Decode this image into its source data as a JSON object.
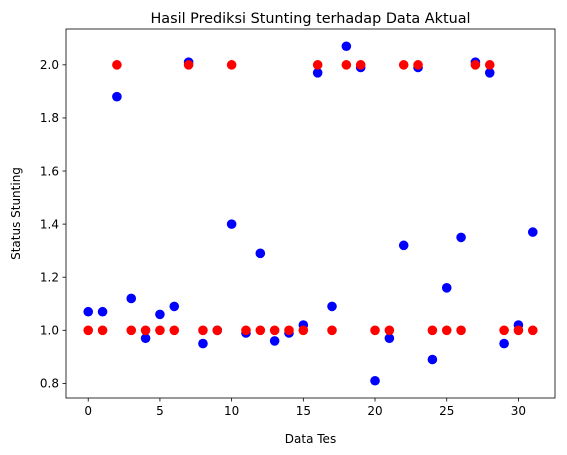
{
  "chart_data": {
    "type": "scatter",
    "title": "Hasil Prediksi Stunting terhadap Data Aktual",
    "xlabel": "Data Tes",
    "ylabel": "Status Stunting",
    "xlim": [
      -1.55,
      32.55
    ],
    "ylim": [
      0.745,
      2.135
    ],
    "xticks": [
      0,
      5,
      10,
      15,
      20,
      25,
      30
    ],
    "yticks": [
      0.8,
      1.0,
      1.2,
      1.4,
      1.6,
      1.8,
      2.0
    ],
    "ytick_labels": [
      "0.8",
      "1.0",
      "1.2",
      "1.4",
      "1.6",
      "1.8",
      "2.0"
    ],
    "grid": false,
    "series": [
      {
        "color": "#0000ff",
        "x": [
          0,
          1,
          2,
          3,
          4,
          5,
          6,
          7,
          8,
          9,
          10,
          11,
          12,
          13,
          14,
          15,
          16,
          17,
          18,
          19,
          20,
          21,
          22,
          23,
          24,
          25,
          26,
          27,
          28,
          29,
          30,
          31
        ],
        "y": [
          1.07,
          1.07,
          1.88,
          1.12,
          0.97,
          1.06,
          1.09,
          2.01,
          0.95,
          1.0,
          1.4,
          0.99,
          1.29,
          0.96,
          0.99,
          1.02,
          1.97,
          1.09,
          2.07,
          1.99,
          0.81,
          0.97,
          1.32,
          1.99,
          0.89,
          1.16,
          1.35,
          2.01,
          1.97,
          0.95,
          1.02,
          1.37
        ]
      },
      {
        "color": "#ff0000",
        "x": [
          0,
          1,
          2,
          3,
          4,
          5,
          6,
          7,
          8,
          9,
          10,
          11,
          12,
          13,
          14,
          15,
          16,
          17,
          18,
          19,
          20,
          21,
          22,
          23,
          24,
          25,
          26,
          27,
          28,
          29,
          30,
          31
        ],
        "y": [
          1,
          1,
          2,
          1,
          1,
          1,
          1,
          2,
          1,
          1,
          2,
          1,
          1,
          1,
          1,
          1,
          2,
          1,
          2,
          2,
          1,
          1,
          2,
          2,
          1,
          1,
          1,
          2,
          2,
          1,
          1,
          1
        ]
      }
    ]
  }
}
